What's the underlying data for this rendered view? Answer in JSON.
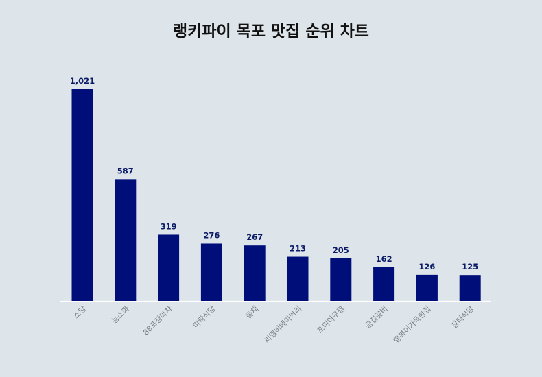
{
  "colors": {
    "background": "#dde5ea",
    "bar": "#000e7a",
    "value_label": "#0a1a66",
    "tick_label": "#7a7f86",
    "axis": "#ffffff"
  },
  "chart_data": {
    "type": "bar",
    "title": "랭키파이 목포 맛집 순위 차트",
    "categories": [
      "소당",
      "농소화",
      "88포장마차",
      "미락식당",
      "뜰채",
      "씨엘비베이커리",
      "포미아구찜",
      "곰집갈비",
      "행복이가득한집",
      "장터식당"
    ],
    "values": [
      1021,
      587,
      319,
      276,
      267,
      213,
      205,
      162,
      126,
      125
    ],
    "value_labels": [
      "1,021",
      "587",
      "319",
      "276",
      "267",
      "213",
      "205",
      "162",
      "126",
      "125"
    ],
    "xlabel": "",
    "ylabel": "",
    "ylim": [
      0,
      1021
    ],
    "grid": false,
    "legend": "none"
  }
}
